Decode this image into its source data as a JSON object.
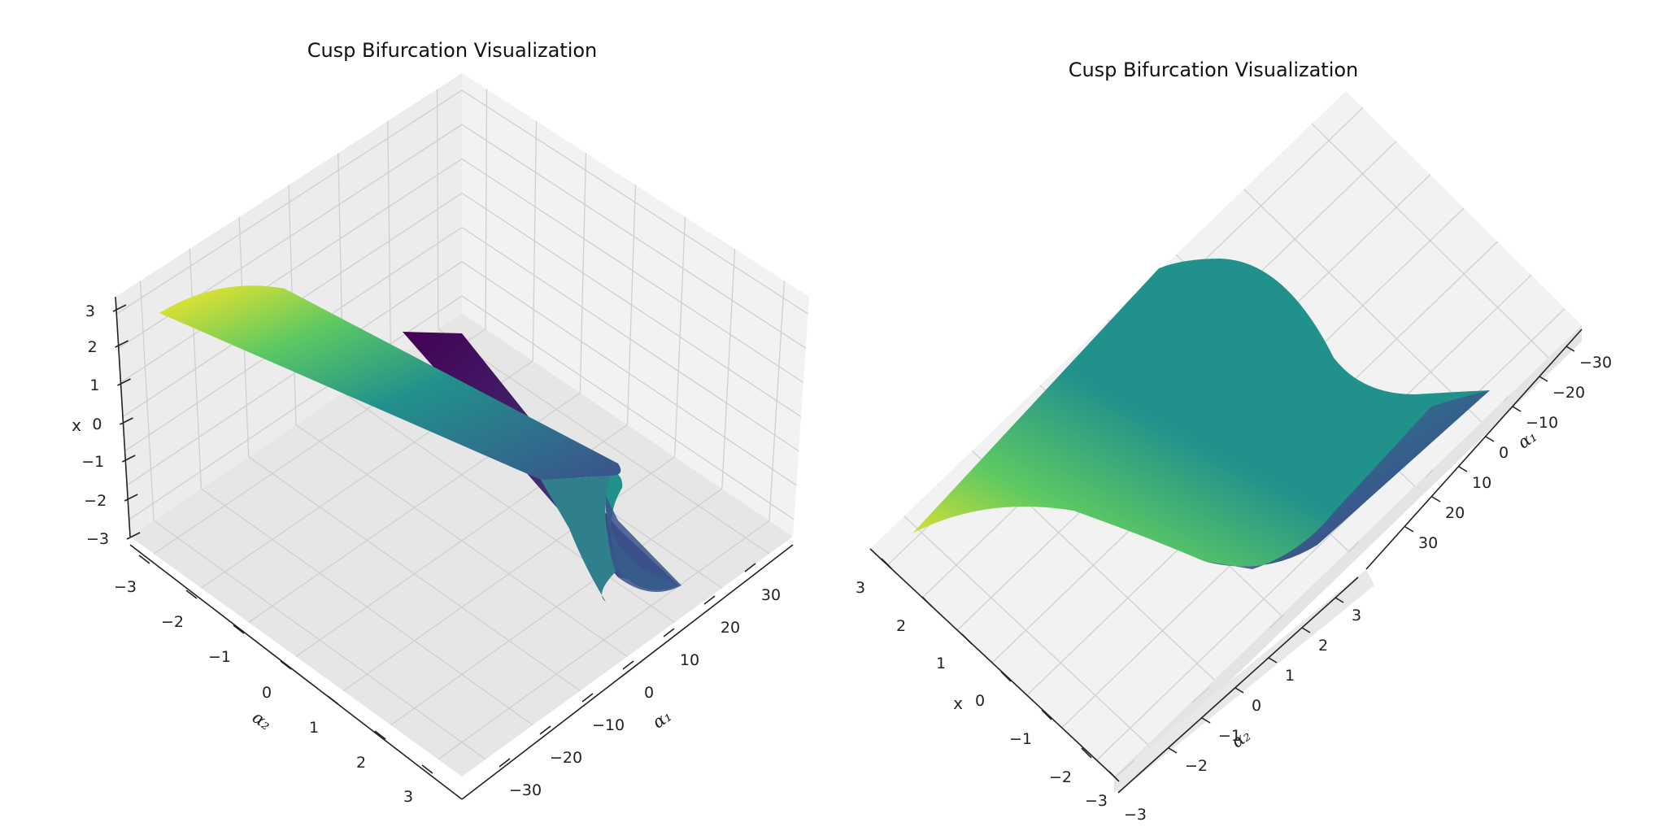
{
  "colors": {
    "viridis": [
      "#440154",
      "#3b528b",
      "#21918c",
      "#5ec962",
      "#fde725"
    ],
    "pane_light": "#f2f2f2",
    "pane_mid": "#e9e9e9",
    "pane_dark": "#e2e2e2",
    "grid": "#cfcfcf"
  },
  "chart_data": [
    {
      "type": "surface",
      "title": "Cusp Bifurcation Visualization",
      "xlabel": "α₁",
      "ylabel": "α₂",
      "zlabel": "x",
      "xlim": [
        -35,
        35
      ],
      "ylim": [
        -3.3,
        3.3
      ],
      "zlim": [
        -3.3,
        3.3
      ],
      "xticks": [
        "−30",
        "−20",
        "−10",
        "0",
        "10",
        "20",
        "30"
      ],
      "yticks": [
        "−3",
        "−2",
        "−1",
        "0",
        "1",
        "2",
        "3"
      ],
      "zticks": [
        "3",
        "2",
        "1",
        "0",
        "−1",
        "−2",
        "−3"
      ],
      "surface": "x^3 + α₂·x + α₁ = 0, x ∈ [-3, 3], α₂ ∈ [-3, 3]",
      "colormap": "viridis",
      "grid": true
    },
    {
      "type": "surface",
      "title": "Cusp Bifurcation Visualization",
      "xlabel": "α₁",
      "ylabel": "α₂",
      "zlabel": "x",
      "xlim": [
        -35,
        35
      ],
      "ylim": [
        -3.3,
        3.3
      ],
      "zlim": [
        -3.3,
        3.3
      ],
      "xticks": [
        "−30",
        "−20",
        "−10",
        "0",
        "10",
        "20",
        "30"
      ],
      "yticks": [
        "3",
        "2",
        "1",
        "0",
        "−1",
        "−2"
      ],
      "zticks": [
        "3",
        "2",
        "1",
        "0",
        "−1",
        "−2",
        "−3"
      ],
      "extra_yticks": [
        "−3"
      ],
      "surface": "x^3 + α₂·x + α₁ = 0, x ∈ [-3, 3], α₂ ∈ [-3, 3]",
      "colormap": "viridis",
      "grid": true
    }
  ]
}
